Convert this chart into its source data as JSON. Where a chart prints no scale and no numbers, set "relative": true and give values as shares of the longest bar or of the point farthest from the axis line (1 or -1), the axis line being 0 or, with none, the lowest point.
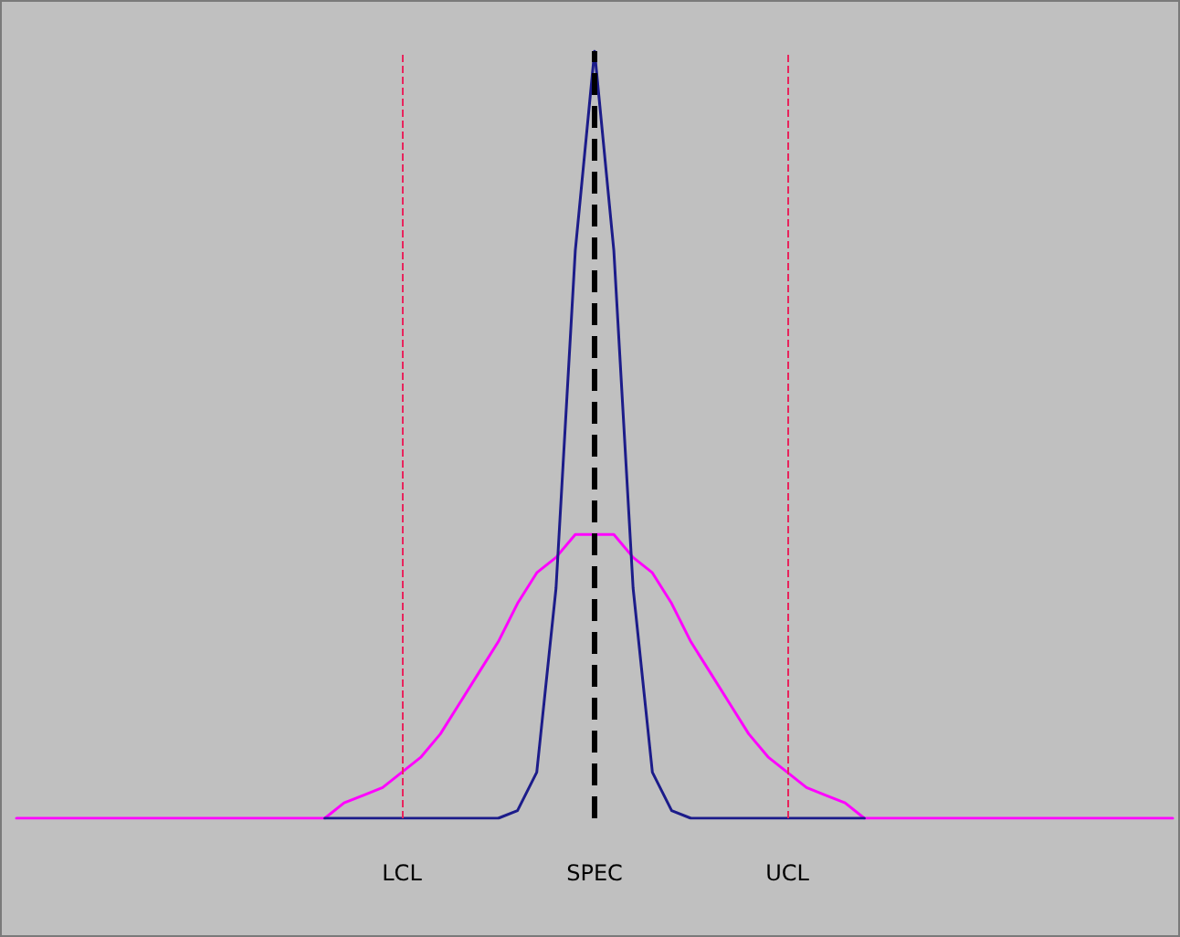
{
  "chart_data": {
    "type": "line",
    "relative": true,
    "categories": [
      null,
      null,
      null,
      null,
      null,
      null,
      null,
      null,
      null,
      null,
      null,
      null,
      null,
      null,
      null,
      null,
      null,
      null,
      null,
      null,
      "LCL",
      null,
      null,
      null,
      null,
      null,
      null,
      null,
      null,
      null,
      "SPEC",
      null,
      null,
      null,
      null,
      null,
      null,
      null,
      null,
      null,
      "UCL",
      null,
      null,
      null,
      null,
      null,
      null,
      null,
      null,
      null,
      null,
      null,
      null,
      null,
      null,
      null,
      null,
      null,
      null,
      null,
      null
    ],
    "series": [
      {
        "color": "#ff00ff",
        "values": [
          0,
          0,
          0,
          0,
          0,
          0,
          0,
          0,
          0,
          0,
          0,
          0,
          0,
          0,
          0,
          0,
          0,
          0.02,
          0.03,
          0.04,
          0.06,
          0.08,
          0.11,
          0.15,
          0.19,
          0.23,
          0.28,
          0.32,
          0.34,
          0.37,
          0.37,
          0.37,
          0.34,
          0.32,
          0.28,
          0.23,
          0.19,
          0.15,
          0.11,
          0.08,
          0.06,
          0.04,
          0.03,
          0.02,
          0,
          0,
          0,
          0,
          0,
          0,
          0,
          0,
          0,
          0,
          0,
          0,
          0,
          0,
          0,
          0,
          0
        ]
      },
      {
        "color": "#1c1c8a",
        "values": [
          null,
          null,
          null,
          null,
          null,
          null,
          null,
          null,
          null,
          null,
          null,
          null,
          null,
          null,
          null,
          null,
          0,
          0,
          0,
          0,
          0,
          0,
          0,
          0,
          0,
          0,
          0.01,
          0.06,
          0.3,
          0.74,
          1,
          0.74,
          0.3,
          0.06,
          0.01,
          0,
          0,
          0,
          0,
          0,
          0,
          0,
          0,
          0,
          0,
          null,
          null,
          null,
          null,
          null,
          null,
          null,
          null,
          null,
          null,
          null,
          null,
          null,
          null,
          null,
          null
        ]
      }
    ],
    "ref_lines": [
      {
        "axis": "x",
        "value": "LCL",
        "color": "#e8245c",
        "line_style": "dashed"
      },
      {
        "axis": "x",
        "value": "SPEC",
        "color": "#000000",
        "line_style": "dashed"
      },
      {
        "axis": "x",
        "value": "UCL",
        "color": "#e8245c",
        "line_style": "dashed"
      }
    ],
    "grid": false,
    "marker": "none",
    "line_style": "solid"
  }
}
